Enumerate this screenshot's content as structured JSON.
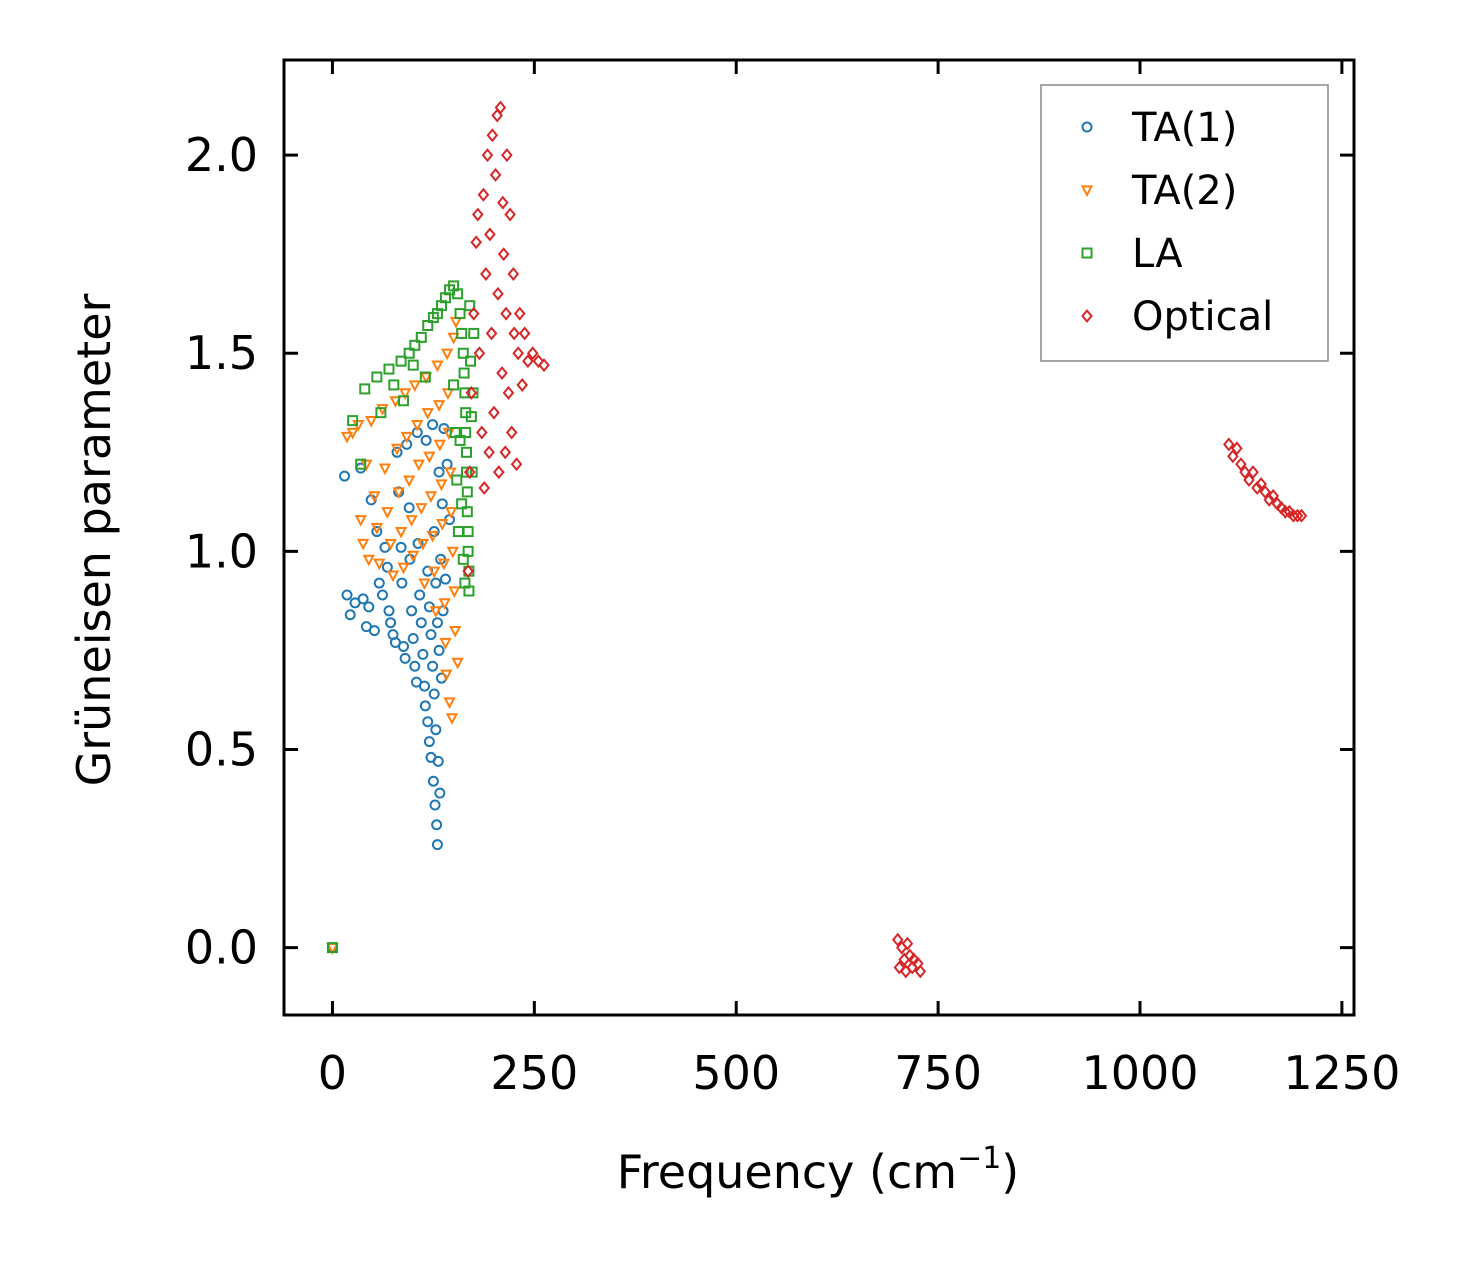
{
  "chart_data": {
    "type": "scatter",
    "title": "",
    "xlabel": "Frequency (cm",
    "xlabel_sup": "−1",
    "xlabel_end": ")",
    "ylabel": "Grüneisen parameter",
    "xlim": [
      -60,
      1265
    ],
    "ylim": [
      -0.17,
      2.24
    ],
    "xticks": [
      0,
      250,
      500,
      750,
      1000,
      1250
    ],
    "xtick_labels": [
      "0",
      "250",
      "500",
      "750",
      "1000",
      "1250"
    ],
    "yticks": [
      0.0,
      0.5,
      1.0,
      1.5,
      2.0
    ],
    "ytick_labels": [
      "0.0",
      "0.5",
      "1.0",
      "1.5",
      "2.0"
    ],
    "legend_position": "top-right",
    "series": [
      {
        "name": "TA(1)",
        "marker": "circle",
        "color": "#1f77b4",
        "points": [
          [
            0,
            0.0
          ],
          [
            15,
            1.19
          ],
          [
            18,
            0.89
          ],
          [
            22,
            0.84
          ],
          [
            28,
            0.87
          ],
          [
            35,
            1.21
          ],
          [
            38,
            0.88
          ],
          [
            42,
            0.81
          ],
          [
            45,
            0.86
          ],
          [
            48,
            1.13
          ],
          [
            52,
            0.8
          ],
          [
            55,
            1.05
          ],
          [
            58,
            0.92
          ],
          [
            62,
            0.89
          ],
          [
            65,
            1.01
          ],
          [
            68,
            0.96
          ],
          [
            70,
            0.85
          ],
          [
            72,
            0.82
          ],
          [
            75,
            0.79
          ],
          [
            78,
            0.77
          ],
          [
            80,
            1.25
          ],
          [
            82,
            1.15
          ],
          [
            85,
            1.01
          ],
          [
            86,
            0.92
          ],
          [
            88,
            0.76
          ],
          [
            90,
            0.73
          ],
          [
            92,
            1.27
          ],
          [
            95,
            1.11
          ],
          [
            96,
            0.98
          ],
          [
            98,
            0.85
          ],
          [
            100,
            0.78
          ],
          [
            102,
            0.71
          ],
          [
            104,
            0.67
          ],
          [
            105,
            1.3
          ],
          [
            106,
            1.02
          ],
          [
            108,
            0.89
          ],
          [
            110,
            0.82
          ],
          [
            112,
            0.74
          ],
          [
            114,
            0.66
          ],
          [
            115,
            0.61
          ],
          [
            116,
            1.28
          ],
          [
            118,
            0.95
          ],
          [
            118,
            0.57
          ],
          [
            120,
            0.86
          ],
          [
            120,
            0.52
          ],
          [
            122,
            0.79
          ],
          [
            122,
            0.48
          ],
          [
            124,
            1.32
          ],
          [
            124,
            0.71
          ],
          [
            125,
            0.42
          ],
          [
            126,
            1.05
          ],
          [
            126,
            0.64
          ],
          [
            127,
            0.36
          ],
          [
            128,
            0.92
          ],
          [
            128,
            0.55
          ],
          [
            129,
            0.31
          ],
          [
            130,
            0.82
          ],
          [
            130,
            0.26
          ],
          [
            131,
            0.47
          ],
          [
            132,
            1.2
          ],
          [
            132,
            0.75
          ],
          [
            133,
            0.39
          ],
          [
            134,
            0.98
          ],
          [
            135,
            0.68
          ],
          [
            136,
            1.12
          ],
          [
            137,
            0.85
          ],
          [
            138,
            1.31
          ],
          [
            140,
            0.93
          ],
          [
            142,
            1.22
          ],
          [
            145,
            1.08
          ]
        ]
      },
      {
        "name": "TA(2)",
        "marker": "triangle",
        "color": "#ff7f0e",
        "points": [
          [
            0,
            0.0
          ],
          [
            18,
            1.29
          ],
          [
            25,
            1.3
          ],
          [
            32,
            1.32
          ],
          [
            35,
            1.08
          ],
          [
            38,
            1.02
          ],
          [
            42,
            1.22
          ],
          [
            45,
            0.98
          ],
          [
            48,
            1.33
          ],
          [
            52,
            1.14
          ],
          [
            55,
            1.06
          ],
          [
            58,
            0.97
          ],
          [
            62,
            1.36
          ],
          [
            65,
            1.21
          ],
          [
            68,
            1.1
          ],
          [
            72,
            1.02
          ],
          [
            75,
            0.94
          ],
          [
            78,
            1.38
          ],
          [
            80,
            1.26
          ],
          [
            82,
            1.15
          ],
          [
            85,
            1.05
          ],
          [
            88,
            0.96
          ],
          [
            90,
            1.4
          ],
          [
            92,
            1.29
          ],
          [
            95,
            1.18
          ],
          [
            98,
            1.08
          ],
          [
            100,
            0.99
          ],
          [
            102,
            1.42
          ],
          [
            105,
            1.32
          ],
          [
            107,
            1.22
          ],
          [
            110,
            1.11
          ],
          [
            112,
            1.02
          ],
          [
            114,
            0.92
          ],
          [
            116,
            1.44
          ],
          [
            118,
            1.35
          ],
          [
            120,
            1.24
          ],
          [
            122,
            1.14
          ],
          [
            124,
            1.04
          ],
          [
            126,
            0.95
          ],
          [
            128,
            0.85
          ],
          [
            130,
            1.47
          ],
          [
            132,
            1.37
          ],
          [
            133,
            1.27
          ],
          [
            135,
            1.17
          ],
          [
            136,
            1.07
          ],
          [
            138,
            0.97
          ],
          [
            139,
            0.87
          ],
          [
            140,
            0.77
          ],
          [
            141,
            0.69
          ],
          [
            142,
            1.5
          ],
          [
            143,
            1.4
          ],
          [
            144,
            1.3
          ],
          [
            145,
            0.62
          ],
          [
            146,
            1.2
          ],
          [
            147,
            1.1
          ],
          [
            148,
            0.58
          ],
          [
            149,
            1.0
          ],
          [
            150,
            1.54
          ],
          [
            151,
            0.9
          ],
          [
            152,
            0.8
          ],
          [
            153,
            1.58
          ],
          [
            155,
            0.72
          ]
        ]
      },
      {
        "name": "LA",
        "marker": "square",
        "color": "#2ca02c",
        "points": [
          [
            0,
            0.0
          ],
          [
            25,
            1.33
          ],
          [
            40,
            1.41
          ],
          [
            55,
            1.44
          ],
          [
            70,
            1.46
          ],
          [
            85,
            1.48
          ],
          [
            95,
            1.5
          ],
          [
            102,
            1.52
          ],
          [
            110,
            1.54
          ],
          [
            118,
            1.57
          ],
          [
            125,
            1.59
          ],
          [
            130,
            1.6
          ],
          [
            135,
            1.62
          ],
          [
            140,
            1.64
          ],
          [
            145,
            1.66
          ],
          [
            150,
            1.67
          ],
          [
            155,
            1.65
          ],
          [
            158,
            1.6
          ],
          [
            160,
            1.55
          ],
          [
            162,
            1.5
          ],
          [
            163,
            1.45
          ],
          [
            164,
            1.4
          ],
          [
            165,
            1.35
          ],
          [
            165,
            1.3
          ],
          [
            166,
            1.25
          ],
          [
            166,
            1.2
          ],
          [
            167,
            1.15
          ],
          [
            167,
            1.1
          ],
          [
            168,
            1.05
          ],
          [
            168,
            1.0
          ],
          [
            169,
            0.95
          ],
          [
            169,
            0.9
          ],
          [
            170,
            1.62
          ],
          [
            171,
            1.48
          ],
          [
            172,
            1.34
          ],
          [
            173,
            1.2
          ],
          [
            174,
            1.4
          ],
          [
            175,
            1.55
          ],
          [
            158,
            1.28
          ],
          [
            160,
            1.12
          ],
          [
            162,
            0.98
          ],
          [
            164,
            0.92
          ],
          [
            150,
            1.42
          ],
          [
            152,
            1.3
          ],
          [
            154,
            1.18
          ],
          [
            156,
            1.05
          ],
          [
            76,
            1.42
          ],
          [
            100,
            1.47
          ],
          [
            35,
            1.22
          ],
          [
            60,
            1.35
          ],
          [
            88,
            1.38
          ],
          [
            115,
            1.44
          ]
        ]
      },
      {
        "name": "Optical",
        "marker": "diamond",
        "color": "#d62728",
        "points": [
          [
            168,
            0.95
          ],
          [
            170,
            1.2
          ],
          [
            172,
            1.4
          ],
          [
            175,
            1.6
          ],
          [
            178,
            1.78
          ],
          [
            180,
            1.85
          ],
          [
            182,
            1.5
          ],
          [
            185,
            1.3
          ],
          [
            187,
            1.9
          ],
          [
            188,
            1.16
          ],
          [
            190,
            1.7
          ],
          [
            192,
            2.0
          ],
          [
            194,
            1.25
          ],
          [
            195,
            1.8
          ],
          [
            197,
            1.55
          ],
          [
            198,
            2.05
          ],
          [
            200,
            1.35
          ],
          [
            202,
            1.95
          ],
          [
            204,
            2.1
          ],
          [
            205,
            1.65
          ],
          [
            206,
            1.2
          ],
          [
            208,
            2.12
          ],
          [
            210,
            1.45
          ],
          [
            211,
            1.88
          ],
          [
            212,
            1.75
          ],
          [
            214,
            1.25
          ],
          [
            215,
            1.6
          ],
          [
            216,
            2.0
          ],
          [
            218,
            1.4
          ],
          [
            220,
            1.85
          ],
          [
            222,
            1.3
          ],
          [
            224,
            1.7
          ],
          [
            225,
            1.55
          ],
          [
            228,
            1.22
          ],
          [
            230,
            1.5
          ],
          [
            232,
            1.6
          ],
          [
            235,
            1.42
          ],
          [
            238,
            1.55
          ],
          [
            242,
            1.48
          ],
          [
            248,
            1.5
          ],
          [
            255,
            1.48
          ],
          [
            262,
            1.47
          ],
          [
            700,
            0.02
          ],
          [
            702,
            -0.05
          ],
          [
            705,
            0.0
          ],
          [
            708,
            -0.03
          ],
          [
            710,
            -0.06
          ],
          [
            712,
            0.01
          ],
          [
            715,
            -0.02
          ],
          [
            718,
            -0.05
          ],
          [
            720,
            -0.03
          ],
          [
            725,
            -0.04
          ],
          [
            728,
            -0.06
          ],
          [
            1110,
            1.27
          ],
          [
            1115,
            1.24
          ],
          [
            1120,
            1.26
          ],
          [
            1125,
            1.22
          ],
          [
            1130,
            1.2
          ],
          [
            1135,
            1.18
          ],
          [
            1140,
            1.2
          ],
          [
            1145,
            1.16
          ],
          [
            1150,
            1.17
          ],
          [
            1155,
            1.15
          ],
          [
            1160,
            1.13
          ],
          [
            1165,
            1.14
          ],
          [
            1170,
            1.12
          ],
          [
            1175,
            1.11
          ],
          [
            1180,
            1.1
          ],
          [
            1185,
            1.1
          ],
          [
            1190,
            1.09
          ],
          [
            1195,
            1.09
          ],
          [
            1200,
            1.09
          ]
        ]
      }
    ]
  }
}
